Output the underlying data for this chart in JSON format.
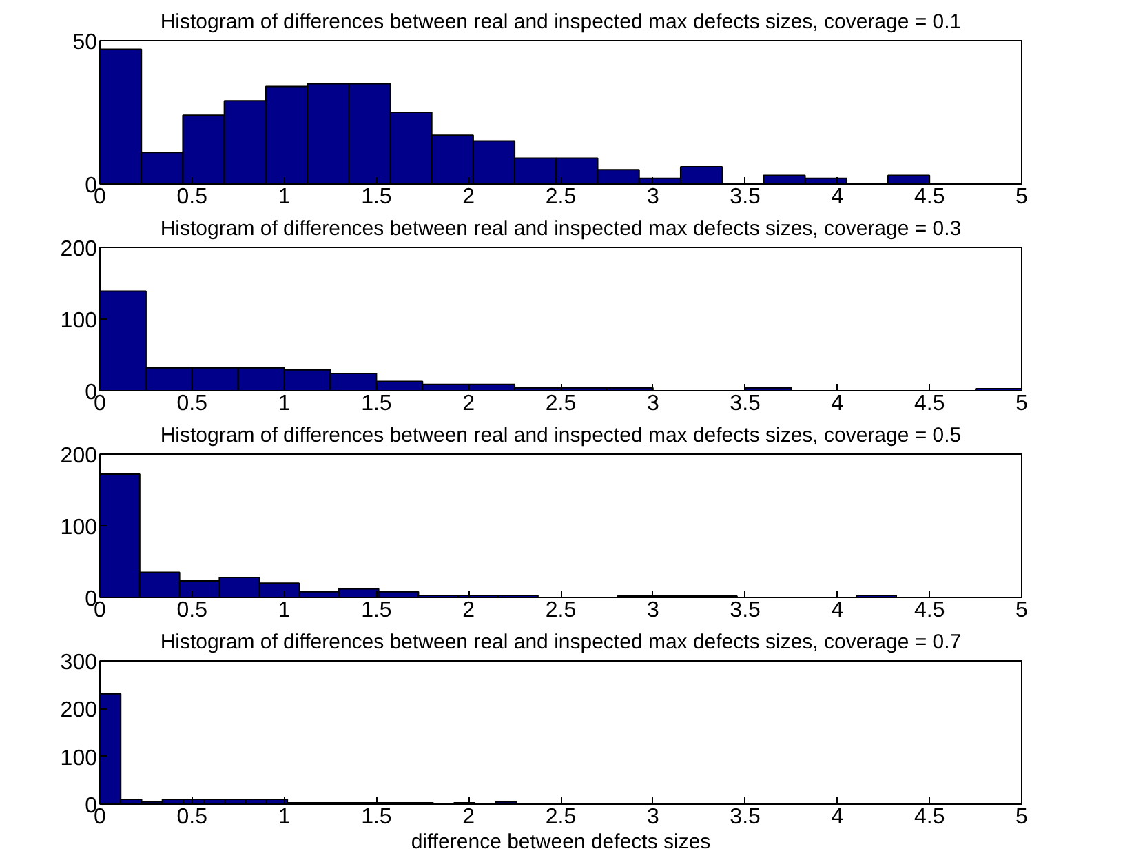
{
  "chart_data": [
    {
      "type": "histogram",
      "title": "Histogram of differences between real and inspected max defects sizes, coverage = 0.1",
      "color": "#00008b",
      "bins": [
        0,
        0.225,
        0.45,
        0.675,
        0.9,
        1.125,
        1.35,
        1.575,
        1.8,
        2.025,
        2.25,
        2.475,
        2.7,
        2.925,
        3.15,
        3.375,
        3.6,
        3.825,
        4.05,
        4.275,
        4.5
      ],
      "values": [
        47,
        11,
        24,
        29,
        34,
        35,
        35,
        25,
        17,
        15,
        9,
        9,
        5,
        2,
        6,
        0,
        3,
        2,
        0,
        3
      ],
      "xlim": [
        0,
        5
      ],
      "xticks": [
        0,
        0.5,
        1,
        1.5,
        2,
        2.5,
        3,
        3.5,
        4,
        4.5,
        5
      ],
      "ylim": [
        0,
        50
      ],
      "yticks": [
        0,
        50
      ],
      "grid": false
    },
    {
      "type": "histogram",
      "title": "Histogram of differences between real and inspected max defects sizes, coverage = 0.3",
      "color": "#00008b",
      "bins": [
        0,
        0.25,
        0.5,
        0.75,
        1,
        1.25,
        1.5,
        1.75,
        2,
        2.25,
        2.5,
        2.75,
        3,
        3.25,
        3.5,
        3.75,
        4,
        4.25,
        4.5,
        4.75,
        5
      ],
      "values": [
        139,
        32,
        32,
        32,
        29,
        24,
        13,
        9,
        9,
        4,
        4,
        4,
        null,
        null,
        4,
        null,
        null,
        null,
        null,
        3
      ],
      "xlim": [
        0,
        5
      ],
      "xticks": [
        0,
        0.5,
        1,
        1.5,
        2,
        2.5,
        3,
        3.5,
        4,
        4.5,
        5
      ],
      "ylim": [
        0,
        200
      ],
      "yticks": [
        0,
        100,
        200
      ],
      "grid": false
    },
    {
      "type": "histogram",
      "title": "Histogram of differences between real and inspected max defects sizes, coverage = 0.5",
      "color": "#00008b",
      "bins": [
        0,
        0.216,
        0.432,
        0.648,
        0.864,
        1.08,
        1.296,
        1.512,
        1.728,
        1.944,
        2.16,
        2.376,
        2.592,
        2.808,
        3.024,
        3.24,
        3.456,
        3.672,
        3.888,
        4.104,
        4.32
      ],
      "values": [
        172,
        35,
        23,
        28,
        20,
        8,
        12,
        8,
        3,
        3,
        3,
        0,
        0,
        2,
        2,
        2,
        0,
        0,
        0,
        3
      ],
      "xlim": [
        0,
        5
      ],
      "xticks": [
        0,
        0.5,
        1,
        1.5,
        2,
        2.5,
        3,
        3.5,
        4,
        4.5,
        5
      ],
      "ylim": [
        0,
        200
      ],
      "yticks": [
        0,
        100,
        200
      ],
      "grid": false
    },
    {
      "type": "histogram",
      "title": "Histogram of differences between real and inspected max defects sizes, coverage = 0.7",
      "xlabel": "difference between defects sizes",
      "color": "#00008b",
      "bins": [
        0,
        0.113,
        0.226,
        0.339,
        0.452,
        0.565,
        0.678,
        0.791,
        0.904,
        1.017,
        1.13,
        1.243,
        1.356,
        1.469,
        1.582,
        1.695,
        1.808,
        1.921,
        2.034,
        2.147,
        2.26
      ],
      "values": [
        231,
        10,
        5,
        10,
        10,
        10,
        10,
        10,
        10,
        3,
        3,
        3,
        3,
        3,
        3,
        3,
        0,
        3,
        0,
        5
      ],
      "xlim": [
        0,
        5
      ],
      "xticks": [
        0,
        0.5,
        1,
        1.5,
        2,
        2.5,
        3,
        3.5,
        4,
        4.5,
        5
      ],
      "ylim": [
        0,
        300
      ],
      "yticks": [
        0,
        100,
        200,
        300
      ],
      "grid": false
    }
  ]
}
